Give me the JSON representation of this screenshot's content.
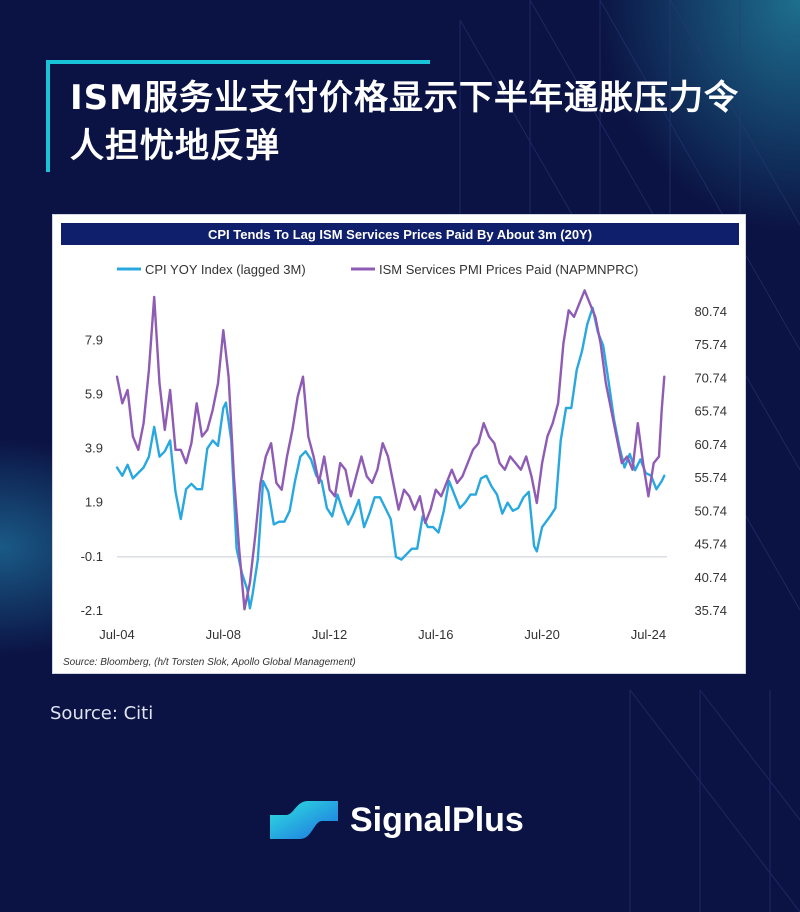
{
  "headline": "ISM服务业支付价格显示下半年通胀压力令人担忧地反弹",
  "source_caption": "Source: Citi",
  "brand": {
    "name": "SignalPlus"
  },
  "colors": {
    "background": "#0b1344",
    "accent": "#19c3d8",
    "cpi": "#29a8e0",
    "ism": "#8e5bb5",
    "chart_header": "#0f1f6b"
  },
  "chart_data": {
    "type": "line",
    "title": "CPI Tends To Lag ISM Services Prices Paid By About 3m (20Y)",
    "source_note": "Source: Bloomberg, (h/t Torsten Slok, Apollo Global Management)",
    "x_tick_labels": [
      "Jul-04",
      "Jul-08",
      "Jul-12",
      "Jul-16",
      "Jul-20",
      "Jul-24"
    ],
    "x_range": [
      2004.5,
      2025.2
    ],
    "y_left": {
      "ticks": [
        -2.1,
        -0.1,
        1.9,
        3.9,
        5.9,
        7.9
      ],
      "range": [
        -2.1,
        9.5
      ]
    },
    "y_right": {
      "ticks": [
        35.74,
        40.74,
        45.74,
        50.74,
        55.74,
        60.74,
        65.74,
        70.74,
        75.74,
        80.74
      ],
      "range": [
        35.74,
        83.0
      ]
    },
    "reference_line_left_y": -0.1,
    "series": [
      {
        "name": "CPI YOY Index (lagged 3M)",
        "axis": "left",
        "color": "#29a8e0",
        "points": [
          [
            2004.5,
            3.2
          ],
          [
            2004.7,
            2.9
          ],
          [
            2004.9,
            3.3
          ],
          [
            2005.1,
            2.8
          ],
          [
            2005.3,
            3.0
          ],
          [
            2005.5,
            3.2
          ],
          [
            2005.7,
            3.6
          ],
          [
            2005.9,
            4.7
          ],
          [
            2006.1,
            3.6
          ],
          [
            2006.3,
            3.8
          ],
          [
            2006.5,
            4.2
          ],
          [
            2006.7,
            2.3
          ],
          [
            2006.9,
            1.3
          ],
          [
            2007.1,
            2.4
          ],
          [
            2007.3,
            2.6
          ],
          [
            2007.5,
            2.4
          ],
          [
            2007.7,
            2.4
          ],
          [
            2007.9,
            3.9
          ],
          [
            2008.1,
            4.2
          ],
          [
            2008.3,
            4.0
          ],
          [
            2008.5,
            5.4
          ],
          [
            2008.6,
            5.6
          ],
          [
            2008.8,
            4.2
          ],
          [
            2009.0,
            0.2
          ],
          [
            2009.2,
            -0.7
          ],
          [
            2009.4,
            -1.3
          ],
          [
            2009.5,
            -2.0
          ],
          [
            2009.6,
            -1.5
          ],
          [
            2009.8,
            -0.2
          ],
          [
            2010.0,
            2.7
          ],
          [
            2010.2,
            2.3
          ],
          [
            2010.4,
            1.1
          ],
          [
            2010.6,
            1.2
          ],
          [
            2010.8,
            1.2
          ],
          [
            2011.0,
            1.6
          ],
          [
            2011.2,
            2.7
          ],
          [
            2011.4,
            3.6
          ],
          [
            2011.6,
            3.8
          ],
          [
            2011.8,
            3.5
          ],
          [
            2012.0,
            2.9
          ],
          [
            2012.2,
            2.7
          ],
          [
            2012.4,
            1.7
          ],
          [
            2012.6,
            1.4
          ],
          [
            2012.8,
            2.2
          ],
          [
            2013.0,
            1.6
          ],
          [
            2013.2,
            1.1
          ],
          [
            2013.4,
            1.5
          ],
          [
            2013.6,
            2.0
          ],
          [
            2013.8,
            1.0
          ],
          [
            2014.0,
            1.5
          ],
          [
            2014.2,
            2.1
          ],
          [
            2014.4,
            2.1
          ],
          [
            2014.6,
            1.7
          ],
          [
            2014.8,
            1.3
          ],
          [
            2015.0,
            -0.1
          ],
          [
            2015.2,
            -0.2
          ],
          [
            2015.4,
            0.0
          ],
          [
            2015.6,
            0.2
          ],
          [
            2015.8,
            0.2
          ],
          [
            2016.0,
            1.4
          ],
          [
            2016.2,
            1.0
          ],
          [
            2016.4,
            1.0
          ],
          [
            2016.6,
            0.8
          ],
          [
            2016.8,
            1.6
          ],
          [
            2017.0,
            2.7
          ],
          [
            2017.2,
            2.2
          ],
          [
            2017.4,
            1.7
          ],
          [
            2017.6,
            1.9
          ],
          [
            2017.8,
            2.2
          ],
          [
            2018.0,
            2.2
          ],
          [
            2018.2,
            2.8
          ],
          [
            2018.4,
            2.9
          ],
          [
            2018.6,
            2.5
          ],
          [
            2018.8,
            2.2
          ],
          [
            2019.0,
            1.5
          ],
          [
            2019.2,
            1.9
          ],
          [
            2019.4,
            1.6
          ],
          [
            2019.6,
            1.7
          ],
          [
            2019.8,
            2.1
          ],
          [
            2020.0,
            2.3
          ],
          [
            2020.2,
            0.3
          ],
          [
            2020.3,
            0.1
          ],
          [
            2020.5,
            1.0
          ],
          [
            2020.8,
            1.4
          ],
          [
            2021.0,
            1.7
          ],
          [
            2021.2,
            4.2
          ],
          [
            2021.4,
            5.4
          ],
          [
            2021.6,
            5.4
          ],
          [
            2021.8,
            6.8
          ],
          [
            2022.0,
            7.5
          ],
          [
            2022.2,
            8.5
          ],
          [
            2022.4,
            9.1
          ],
          [
            2022.6,
            8.2
          ],
          [
            2022.8,
            7.7
          ],
          [
            2023.0,
            6.4
          ],
          [
            2023.2,
            5.0
          ],
          [
            2023.4,
            4.0
          ],
          [
            2023.6,
            3.2
          ],
          [
            2023.8,
            3.7
          ],
          [
            2024.0,
            3.1
          ],
          [
            2024.2,
            3.5
          ],
          [
            2024.4,
            3.0
          ],
          [
            2024.6,
            2.9
          ],
          [
            2024.8,
            2.4
          ],
          [
            2025.0,
            2.7
          ],
          [
            2025.1,
            2.9
          ]
        ]
      },
      {
        "name": "ISM Services PMI Prices Paid (NAPMNPRC)",
        "axis": "right",
        "color": "#8e5bb5",
        "points": [
          [
            2004.5,
            71.0
          ],
          [
            2004.7,
            67.0
          ],
          [
            2004.9,
            69.0
          ],
          [
            2005.1,
            62.0
          ],
          [
            2005.3,
            60.0
          ],
          [
            2005.5,
            64.0
          ],
          [
            2005.7,
            72.0
          ],
          [
            2005.9,
            83.0
          ],
          [
            2006.1,
            70.0
          ],
          [
            2006.3,
            63.0
          ],
          [
            2006.5,
            69.0
          ],
          [
            2006.7,
            60.0
          ],
          [
            2006.9,
            60.0
          ],
          [
            2007.1,
            58.0
          ],
          [
            2007.3,
            61.0
          ],
          [
            2007.5,
            67.0
          ],
          [
            2007.7,
            62.0
          ],
          [
            2007.9,
            63.0
          ],
          [
            2008.1,
            66.0
          ],
          [
            2008.3,
            70.0
          ],
          [
            2008.5,
            78.0
          ],
          [
            2008.7,
            71.0
          ],
          [
            2008.9,
            56.0
          ],
          [
            2009.1,
            45.0
          ],
          [
            2009.3,
            36.0
          ],
          [
            2009.5,
            40.0
          ],
          [
            2009.7,
            47.0
          ],
          [
            2009.9,
            55.0
          ],
          [
            2010.1,
            59.0
          ],
          [
            2010.3,
            61.0
          ],
          [
            2010.5,
            55.0
          ],
          [
            2010.7,
            54.0
          ],
          [
            2010.9,
            59.0
          ],
          [
            2011.1,
            63.0
          ],
          [
            2011.3,
            68.0
          ],
          [
            2011.5,
            71.0
          ],
          [
            2011.7,
            62.0
          ],
          [
            2011.9,
            59.0
          ],
          [
            2012.1,
            55.0
          ],
          [
            2012.3,
            59.0
          ],
          [
            2012.5,
            54.0
          ],
          [
            2012.7,
            53.0
          ],
          [
            2012.9,
            58.0
          ],
          [
            2013.1,
            57.0
          ],
          [
            2013.3,
            53.0
          ],
          [
            2013.5,
            56.0
          ],
          [
            2013.7,
            59.0
          ],
          [
            2013.9,
            56.0
          ],
          [
            2014.1,
            55.0
          ],
          [
            2014.3,
            57.0
          ],
          [
            2014.5,
            61.0
          ],
          [
            2014.7,
            59.0
          ],
          [
            2014.9,
            55.0
          ],
          [
            2015.1,
            51.0
          ],
          [
            2015.3,
            54.0
          ],
          [
            2015.5,
            53.0
          ],
          [
            2015.7,
            51.0
          ],
          [
            2015.9,
            53.0
          ],
          [
            2016.1,
            49.0
          ],
          [
            2016.3,
            51.0
          ],
          [
            2016.5,
            54.0
          ],
          [
            2016.7,
            53.0
          ],
          [
            2016.9,
            55.0
          ],
          [
            2017.1,
            57.0
          ],
          [
            2017.3,
            55.0
          ],
          [
            2017.5,
            56.0
          ],
          [
            2017.7,
            58.0
          ],
          [
            2017.9,
            60.0
          ],
          [
            2018.1,
            61.0
          ],
          [
            2018.3,
            64.0
          ],
          [
            2018.5,
            62.0
          ],
          [
            2018.7,
            61.0
          ],
          [
            2018.9,
            58.0
          ],
          [
            2019.1,
            57.0
          ],
          [
            2019.3,
            59.0
          ],
          [
            2019.5,
            58.0
          ],
          [
            2019.7,
            57.0
          ],
          [
            2019.9,
            59.0
          ],
          [
            2020.1,
            56.0
          ],
          [
            2020.3,
            52.0
          ],
          [
            2020.5,
            58.0
          ],
          [
            2020.7,
            62.0
          ],
          [
            2020.9,
            64.0
          ],
          [
            2021.1,
            67.0
          ],
          [
            2021.3,
            76.0
          ],
          [
            2021.5,
            81.0
          ],
          [
            2021.7,
            80.0
          ],
          [
            2021.9,
            82.0
          ],
          [
            2022.1,
            84.0
          ],
          [
            2022.3,
            82.0
          ],
          [
            2022.5,
            80.0
          ],
          [
            2022.7,
            76.0
          ],
          [
            2022.9,
            70.0
          ],
          [
            2023.1,
            66.0
          ],
          [
            2023.3,
            62.0
          ],
          [
            2023.5,
            58.0
          ],
          [
            2023.7,
            59.0
          ],
          [
            2023.9,
            57.0
          ],
          [
            2024.1,
            64.0
          ],
          [
            2024.3,
            58.0
          ],
          [
            2024.5,
            53.0
          ],
          [
            2024.7,
            58.0
          ],
          [
            2024.9,
            59.0
          ],
          [
            2025.0,
            66.0
          ],
          [
            2025.1,
            71.0
          ]
        ]
      }
    ]
  }
}
